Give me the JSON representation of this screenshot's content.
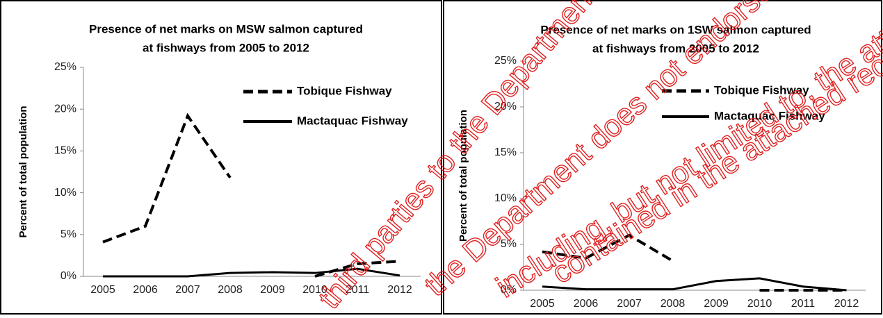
{
  "chart_data": [
    {
      "type": "line",
      "title": [
        "Presence of net marks on MSW salmon captured",
        "at fishways from 2005 to 2012"
      ],
      "y_label": "Percent of total population",
      "categories": [
        "2005",
        "2006",
        "2007",
        "2008",
        "2009",
        "2010",
        "2011",
        "2012"
      ],
      "series": [
        {
          "name": "Tobique Fishway",
          "color": "#000000",
          "dash": true,
          "values": [
            4.1,
            6,
            19.2,
            11.8,
            null,
            0,
            1.5,
            1.8
          ]
        },
        {
          "name": "Mactaquac Fishway",
          "color": "#000000",
          "dash": false,
          "values": [
            0,
            0,
            0,
            0.4,
            0.5,
            0.4,
            0.9,
            0.1
          ]
        }
      ],
      "ylim": [
        0,
        25
      ],
      "yticks": [
        {
          "value": 0,
          "label": "0%"
        },
        {
          "value": 5,
          "label": "5%"
        },
        {
          "value": 10,
          "label": "10%"
        },
        {
          "value": 15,
          "label": "15%"
        },
        {
          "value": 20,
          "label": "20%"
        },
        {
          "value": 25,
          "label": "25%"
        }
      ],
      "grid": false
    },
    {
      "type": "line",
      "title": [
        "Presence of net marks on 1SW salmon captured",
        "at fishways from 2005 to 2012"
      ],
      "y_label": "Percent of total population",
      "categories": [
        "2005",
        "2006",
        "2007",
        "2008",
        "2009",
        "2010",
        "2011",
        "2012"
      ],
      "series": [
        {
          "name": "Tobique Fishway",
          "color": "#000000",
          "dash": true,
          "values": [
            4.2,
            3.5,
            6,
            3.2,
            null,
            0,
            0,
            0
          ]
        },
        {
          "name": "Mactaquac Fishway",
          "color": "#000000",
          "dash": false,
          "values": [
            0.4,
            0.1,
            0.1,
            0.1,
            1.0,
            1.3,
            0.4,
            0
          ]
        }
      ],
      "ylim": [
        0,
        25
      ],
      "yticks": [
        {
          "value": 0,
          "label": "0%"
        },
        {
          "value": 5,
          "label": "5%"
        },
        {
          "value": 10,
          "label": "10%"
        },
        {
          "value": 15,
          "label": "15%"
        },
        {
          "value": 20,
          "label": "20%"
        },
        {
          "value": 25,
          "label": "25%"
        }
      ],
      "grid": false
    }
  ],
  "watermark": [
    "third parties to the Department",
    "the Department does not endorse",
    "including, but not limited to, the attached records.",
    "contained in the attached records."
  ]
}
